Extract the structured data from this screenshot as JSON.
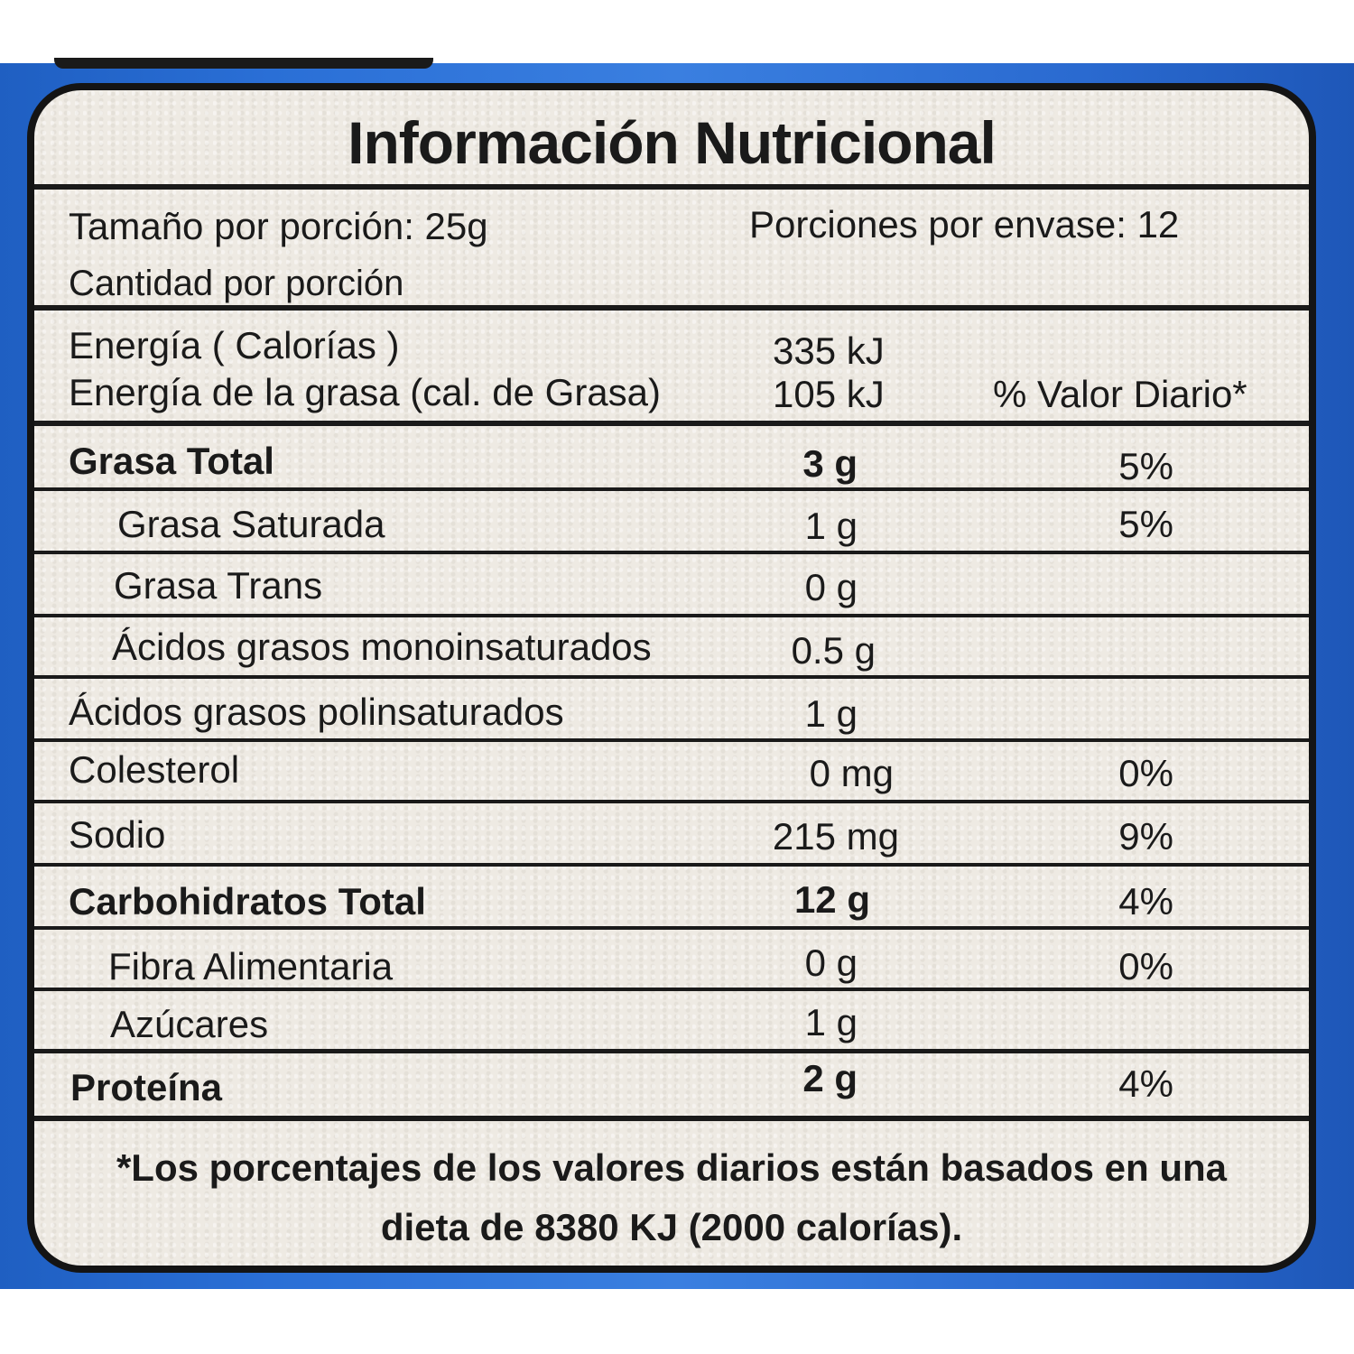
{
  "label": {
    "title": "Información Nutricional",
    "serving_size": "Tamaño por porción: 25g",
    "servings_per_container": "Porciones por envase: 12",
    "amount_per_serving": "Cantidad por porción",
    "energy_label": "Energía ( Calorías )",
    "energy_value": "335 kJ",
    "fat_energy_label": "Energía de la grasa (cal. de Grasa)",
    "fat_energy_value": "105 kJ",
    "daily_value_header": "% Valor Diario*",
    "rows": [
      {
        "name": "Grasa Total",
        "amount": "3 g",
        "dv": "5%"
      },
      {
        "name": "Grasa  Saturada",
        "amount": "1 g",
        "dv": "5%"
      },
      {
        "name": "Grasa  Trans",
        "amount": "0 g",
        "dv": ""
      },
      {
        "name": "Ácidos grasos monoinsaturados",
        "amount": "0.5 g",
        "dv": ""
      },
      {
        "name": "Ácidos grasos polinsaturados",
        "amount": "1 g",
        "dv": ""
      },
      {
        "name": "Colesterol",
        "amount": "0 mg",
        "dv": "0%"
      },
      {
        "name": "Sodio",
        "amount": "215 mg",
        "dv": "9%"
      },
      {
        "name": "Carbohidratos Total",
        "amount": "12 g",
        "dv": "4%"
      },
      {
        "name": "Fibra Alimentaria",
        "amount": "0 g",
        "dv": "0%"
      },
      {
        "name": "Azúcares",
        "amount": "1 g",
        "dv": ""
      },
      {
        "name": "Proteína",
        "amount": "2 g",
        "dv": "4%"
      }
    ],
    "footnote_line1": "*Los porcentajes de los valores diarios están basados en una",
    "footnote_line2": "dieta de 8380 KJ (2000 calorías)."
  }
}
